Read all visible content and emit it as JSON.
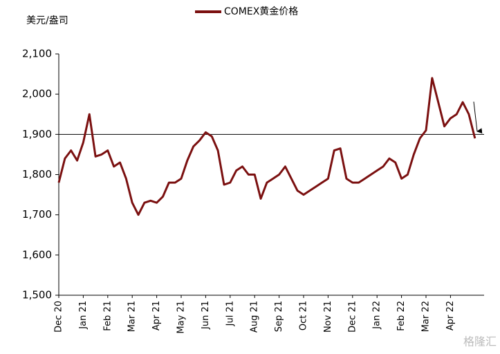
{
  "chart_data": {
    "type": "line",
    "y_label": "美元/盎司",
    "watermark": "格隆汇",
    "categories": [
      "Dec 20",
      null,
      null,
      null,
      "Jan 21",
      null,
      null,
      null,
      "Feb 21",
      null,
      null,
      null,
      "Mar 21",
      null,
      null,
      null,
      "Apr 21",
      null,
      null,
      null,
      "May 21",
      null,
      null,
      null,
      "Jun 21",
      null,
      null,
      null,
      "Jul 21",
      null,
      null,
      null,
      "Aug 21",
      null,
      null,
      null,
      "Sep 21",
      null,
      null,
      null,
      "Oct 21",
      null,
      null,
      null,
      "Nov 21",
      null,
      null,
      null,
      "Dec 21",
      null,
      null,
      null,
      "Jan 22",
      null,
      null,
      null,
      "Feb 22",
      null,
      null,
      null,
      "Mar 22",
      null,
      null,
      null,
      "Apr 22",
      null,
      null,
      null,
      null
    ],
    "series": [
      {
        "name": "COMEX黄金价格",
        "color": "#7b1010",
        "values": [
          1780,
          1840,
          1860,
          1835,
          1880,
          1950,
          1845,
          1850,
          1860,
          1820,
          1830,
          1790,
          1730,
          1700,
          1730,
          1735,
          1730,
          1745,
          1780,
          1780,
          1790,
          1835,
          1870,
          1885,
          1905,
          1895,
          1860,
          1775,
          1780,
          1810,
          1820,
          1800,
          1800,
          1740,
          1780,
          1790,
          1800,
          1820,
          1790,
          1760,
          1750,
          1760,
          1770,
          1780,
          1790,
          1860,
          1865,
          1790,
          1780,
          1780,
          1790,
          1800,
          1810,
          1820,
          1840,
          1830,
          1790,
          1800,
          1850,
          1890,
          1910,
          2040,
          1980,
          1920,
          1940,
          1950,
          1980,
          1950,
          1890
        ]
      }
    ],
    "reference_line": 1900,
    "ylim": [
      1500,
      2100
    ],
    "yticks": [
      {
        "value": 1500,
        "label": "1,500"
      },
      {
        "value": 1600,
        "label": "1,600"
      },
      {
        "value": 1700,
        "label": "1,700"
      },
      {
        "value": 1800,
        "label": "1,800"
      },
      {
        "value": 1900,
        "label": "1,900"
      },
      {
        "value": 2000,
        "label": "2,000"
      },
      {
        "value": 2100,
        "label": "2,100"
      }
    ],
    "legend": "top"
  }
}
